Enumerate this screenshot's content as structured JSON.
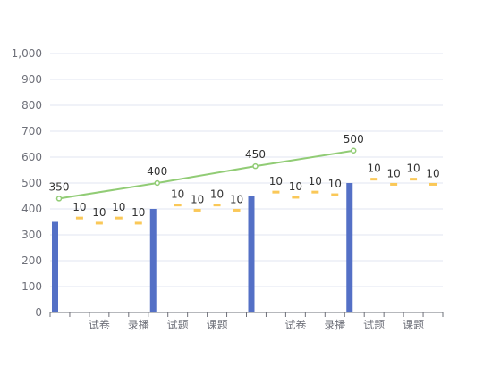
{
  "chart_data": {
    "type": "bar",
    "ylim": [
      0,
      1000
    ],
    "yticks": [
      0,
      100,
      200,
      300,
      400,
      500,
      600,
      700,
      800,
      900,
      1000
    ],
    "ytick_labels": [
      "0",
      "100",
      "200",
      "300",
      "400",
      "500",
      "600",
      "700",
      "800",
      "900",
      "1,000"
    ],
    "category_labels": [
      "",
      "",
      "试卷",
      "",
      "录播",
      "",
      "试题",
      "",
      "课题",
      "",
      "",
      "",
      "试卷",
      "",
      "录播",
      "",
      "试题",
      "",
      "课题",
      ""
    ],
    "colors": {
      "bar": "#5470c6",
      "line": "#91cc75",
      "dash": "#fac858",
      "axis": "#6e7079",
      "grid": "#e0e6f1"
    },
    "bars": [
      {
        "slot": 0,
        "value": 350
      },
      {
        "slot": 5,
        "value": 400
      },
      {
        "slot": 10,
        "value": 450
      },
      {
        "slot": 15,
        "value": 500
      }
    ],
    "line": [
      {
        "slot": 0,
        "value": 440,
        "label": "350"
      },
      {
        "slot": 5,
        "value": 500,
        "label": "400"
      },
      {
        "slot": 10,
        "value": 565,
        "label": "450"
      },
      {
        "slot": 15,
        "value": 625,
        "label": "500"
      }
    ],
    "dashes": [
      {
        "slot": 1,
        "value": 365,
        "label": "10"
      },
      {
        "slot": 2,
        "value": 345,
        "label": "10"
      },
      {
        "slot": 3,
        "value": 365,
        "label": "10"
      },
      {
        "slot": 4,
        "value": 345,
        "label": "10"
      },
      {
        "slot": 6,
        "value": 415,
        "label": "10"
      },
      {
        "slot": 7,
        "value": 395,
        "label": "10"
      },
      {
        "slot": 8,
        "value": 415,
        "label": "10"
      },
      {
        "slot": 9,
        "value": 395,
        "label": "10"
      },
      {
        "slot": 11,
        "value": 465,
        "label": "10"
      },
      {
        "slot": 12,
        "value": 445,
        "label": "10"
      },
      {
        "slot": 13,
        "value": 465,
        "label": "10"
      },
      {
        "slot": 14,
        "value": 455,
        "label": "10"
      },
      {
        "slot": 16,
        "value": 515,
        "label": "10"
      },
      {
        "slot": 17,
        "value": 495,
        "label": "10"
      },
      {
        "slot": 18,
        "value": 515,
        "label": "10"
      },
      {
        "slot": 19,
        "value": 495,
        "label": "10"
      }
    ]
  }
}
